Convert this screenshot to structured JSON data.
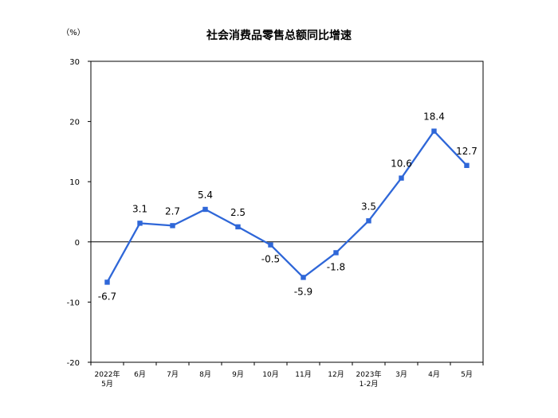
{
  "page": {
    "title": "社会消费品零售总额同比增速",
    "unit": "（%）"
  },
  "chart_data": {
    "type": "line",
    "title": "社会消费品零售总额同比增速",
    "ylabel": "（%）",
    "ylim": [
      -20,
      30
    ],
    "yticks": [
      30,
      20,
      10,
      0,
      -10,
      -20
    ],
    "grid": false,
    "legend": "none",
    "color": "#2f67d8",
    "categories": [
      [
        "2022年",
        "5月"
      ],
      [
        "6月"
      ],
      [
        "7月"
      ],
      [
        "8月"
      ],
      [
        "9月"
      ],
      [
        "10月"
      ],
      [
        "11月"
      ],
      [
        "12月"
      ],
      [
        "2023年",
        "1-2月"
      ],
      [
        "3月"
      ],
      [
        "4月"
      ],
      [
        "5月"
      ]
    ],
    "values": [
      -6.7,
      3.1,
      2.7,
      5.4,
      2.5,
      -0.5,
      -5.9,
      -1.8,
      3.5,
      10.6,
      18.4,
      12.7
    ],
    "data_labels": [
      "-6.7",
      "3.1",
      "2.7",
      "5.4",
      "2.5",
      "-0.5",
      "-5.9",
      "-1.8",
      "3.5",
      "10.6",
      "18.4",
      "12.7"
    ]
  }
}
